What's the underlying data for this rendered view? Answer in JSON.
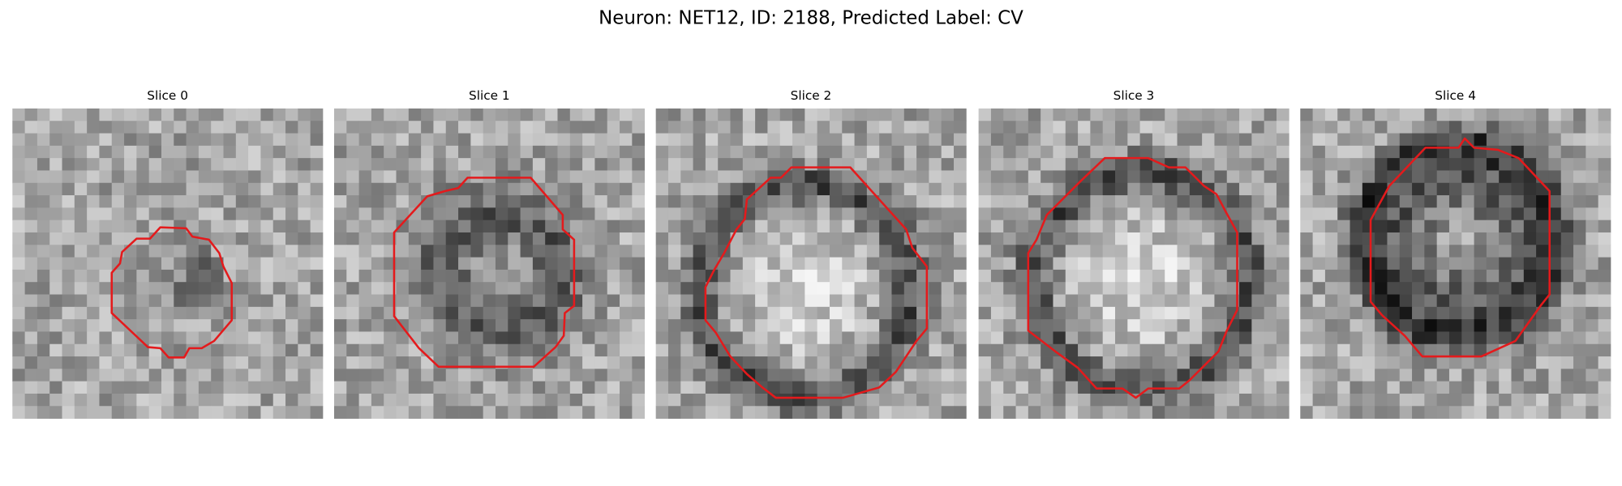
{
  "figure": {
    "title": "Neuron: NET12, ID: 2188, Predicted Label: CV",
    "panels": [
      {
        "title": "Slice 0"
      },
      {
        "title": "Slice 1"
      },
      {
        "title": "Slice 2"
      },
      {
        "title": "Slice 3"
      },
      {
        "title": "Slice 4"
      }
    ]
  }
}
